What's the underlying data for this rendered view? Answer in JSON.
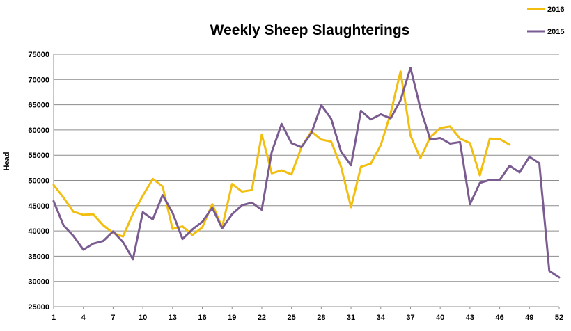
{
  "chart_data": {
    "type": "line",
    "title": "Weekly Sheep Slaughterings",
    "xlabel": "",
    "ylabel": "Head",
    "ylim": [
      25000,
      75000
    ],
    "yticks": [
      25000,
      30000,
      35000,
      40000,
      45000,
      50000,
      55000,
      60000,
      65000,
      70000,
      75000
    ],
    "xlim": [
      1,
      52
    ],
    "xticks": [
      1,
      4,
      7,
      10,
      13,
      16,
      19,
      22,
      25,
      28,
      31,
      34,
      37,
      40,
      43,
      46,
      49,
      52
    ],
    "grid": true,
    "legend_placement": "top-right",
    "series": [
      {
        "name": "2016",
        "color": "#F2BE0F",
        "x": [
          1,
          2,
          3,
          4,
          5,
          6,
          7,
          8,
          9,
          10,
          11,
          12,
          13,
          14,
          15,
          16,
          17,
          18,
          19,
          20,
          21,
          22,
          23,
          24,
          25,
          26,
          27,
          28,
          29,
          30,
          31,
          32,
          33,
          34,
          35,
          36,
          37,
          38,
          39,
          40,
          41,
          42,
          43,
          44,
          45,
          46,
          47
        ],
        "values": [
          49100,
          46600,
          43800,
          43200,
          43300,
          41100,
          39600,
          38900,
          43400,
          47000,
          50300,
          48800,
          40400,
          40900,
          39200,
          40700,
          45300,
          40700,
          49300,
          47800,
          48100,
          59100,
          51400,
          52000,
          51200,
          56600,
          59700,
          58100,
          57700,
          52700,
          44700,
          52700,
          53300,
          57000,
          63300,
          71600,
          58900,
          54400,
          58600,
          60400,
          60700,
          58300,
          57400,
          51000,
          58300,
          58200,
          57100
        ]
      },
      {
        "name": "2015",
        "color": "#7A5C91",
        "x": [
          1,
          2,
          3,
          4,
          5,
          6,
          7,
          8,
          9,
          10,
          11,
          12,
          13,
          14,
          15,
          16,
          17,
          18,
          19,
          20,
          21,
          22,
          23,
          24,
          25,
          26,
          27,
          28,
          29,
          30,
          31,
          32,
          33,
          34,
          35,
          36,
          37,
          38,
          39,
          40,
          41,
          42,
          43,
          44,
          45,
          46,
          47,
          48,
          49,
          50,
          51,
          52
        ],
        "values": [
          45900,
          41100,
          39000,
          36300,
          37500,
          38000,
          39900,
          37800,
          34400,
          43700,
          42300,
          47100,
          43600,
          38400,
          40300,
          41800,
          44600,
          40500,
          43300,
          45100,
          45600,
          44200,
          55600,
          61200,
          57400,
          56600,
          59400,
          64900,
          62200,
          55700,
          53000,
          63800,
          62100,
          63100,
          62300,
          65900,
          72300,
          64300,
          58100,
          58400,
          57300,
          57600,
          45300,
          49500,
          50100,
          50100,
          52900,
          51600,
          54700,
          53400,
          32100,
          30800
        ]
      }
    ]
  }
}
